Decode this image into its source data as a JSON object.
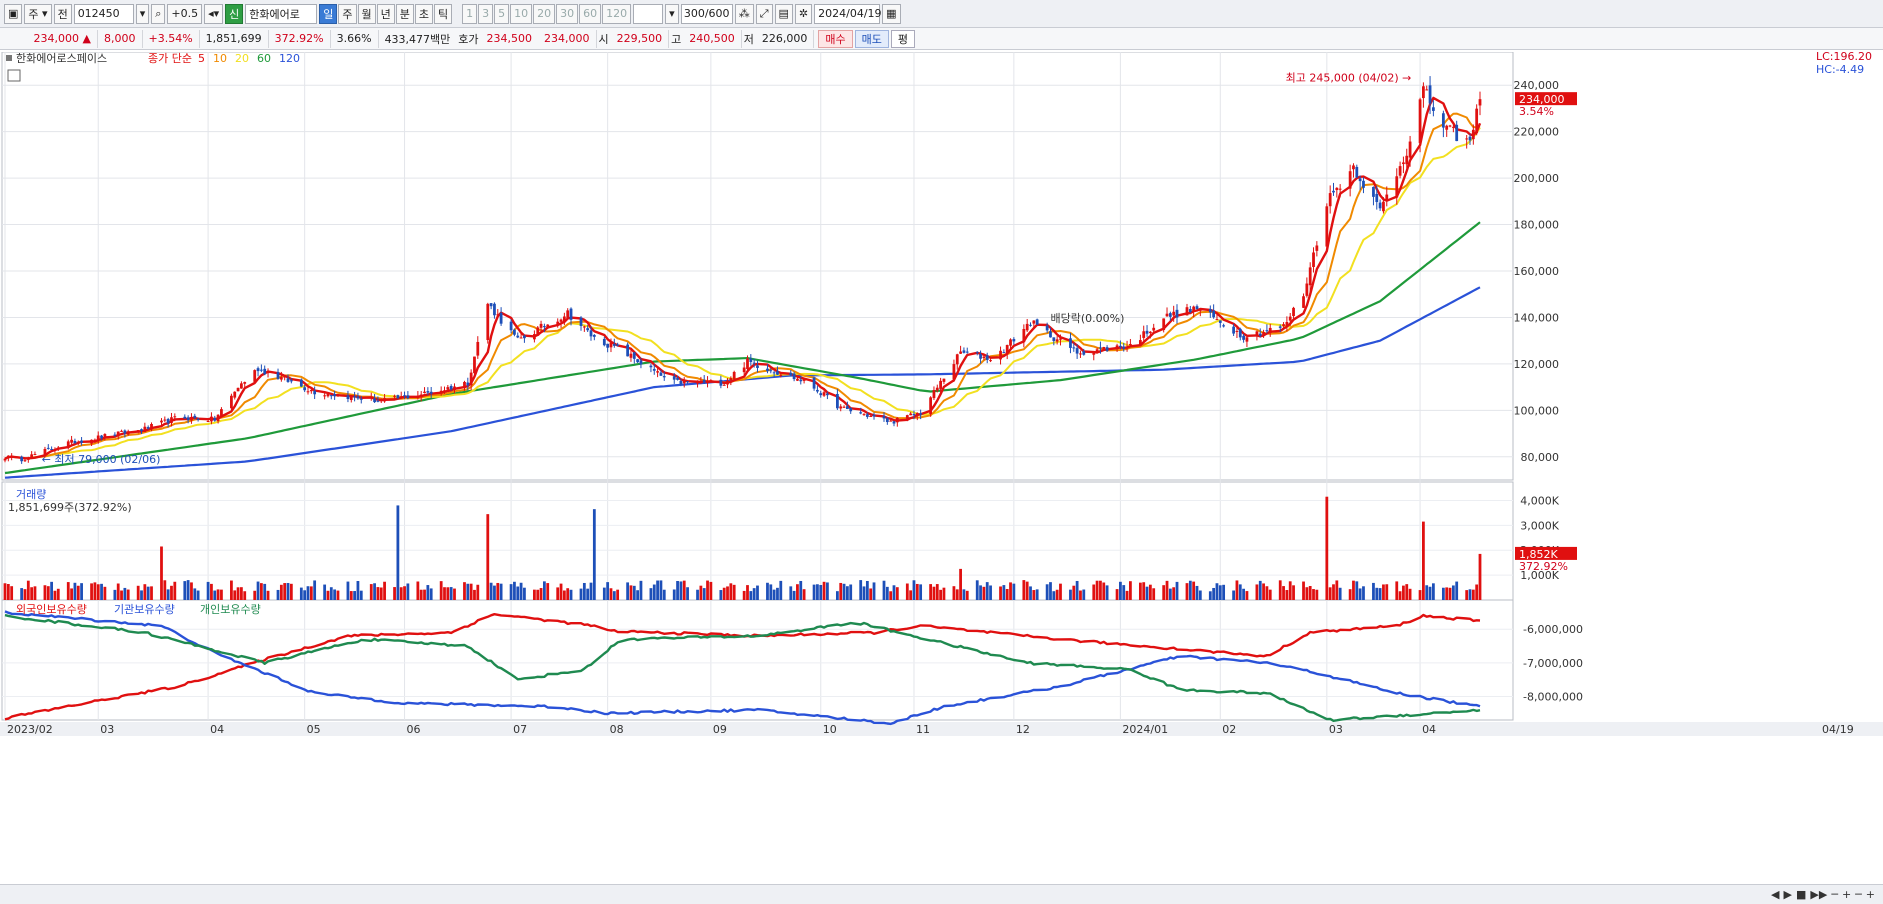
{
  "toolbar": {
    "period_select": "주",
    "code_label": "전",
    "stock_code": "012450",
    "adjust_label": "+0.5",
    "credit_badge": "신",
    "stock_name": "한화에어로",
    "periods": [
      "일",
      "주",
      "월",
      "년",
      "분",
      "초",
      "틱"
    ],
    "active_period": "일",
    "minute_options": [
      "1",
      "3",
      "5",
      "10",
      "20",
      "30",
      "60",
      "120"
    ],
    "count_value": "300/600",
    "date_value": "2024/04/19"
  },
  "quote": {
    "price": "234,000 ▲",
    "change": "8,000",
    "change_pct": "+3.54%",
    "volume": "1,851,699",
    "volume_ratio": "372.92%",
    "turnover": "3.66%",
    "amount": "433,477백만",
    "bid_label": "호가",
    "ask": "234,500",
    "bid": "234,000",
    "open_label": "시",
    "open": "229,500",
    "high_label": "고",
    "high": "240,500",
    "low_label": "저",
    "low": "226,000",
    "buy_button": "매수",
    "sell_button": "매도",
    "eval_button": "평"
  },
  "chart_data": {
    "type": "candlestick",
    "legend": {
      "stock_name": "한화에어로스페이스",
      "ma_title": "종가 단순",
      "ma_periods": [
        "5",
        "10",
        "20",
        "60",
        "120"
      ],
      "ma_colors": [
        "#e01010",
        "#f08a00",
        "#f2e020",
        "#1f9a3a",
        "#2a52d8"
      ]
    },
    "x_axis_labels": [
      "2023/02",
      "03",
      "04",
      "05",
      "06",
      "07",
      "08",
      "09",
      "10",
      "11",
      "12",
      "2024/01",
      "02",
      "03",
      "04",
      "04/19"
    ],
    "price_axis_ticks": [
      "240,000",
      "220,000",
      "200,000",
      "180,000",
      "160,000",
      "140,000",
      "120,000",
      "100,000",
      "80,000"
    ],
    "price_ylim": [
      70000,
      250000
    ],
    "lc_label": "LC:196.20",
    "hc_label": "HC:-4.49",
    "last_price_tag": "234,000",
    "last_pct_tag": "3.54%",
    "high_annotation": "최고 245,000 (04/02)",
    "low_annotation": "최저 79,000 (02/06)",
    "dividend_annotation": "배당락(0.00%)",
    "price_anchors": [
      [
        "2023-02-01",
        80000
      ],
      [
        "2023-02-06",
        79000
      ],
      [
        "2023-02-20",
        86000
      ],
      [
        "2023-03-15",
        92000
      ],
      [
        "2023-03-25",
        97000
      ],
      [
        "2023-04-05",
        96000
      ],
      [
        "2023-04-12",
        110000
      ],
      [
        "2023-04-18",
        118000
      ],
      [
        "2023-05-05",
        108000
      ],
      [
        "2023-05-25",
        104000
      ],
      [
        "2023-06-10",
        108000
      ],
      [
        "2023-06-20",
        112000
      ],
      [
        "2023-06-26",
        146000
      ],
      [
        "2023-07-05",
        130000
      ],
      [
        "2023-07-20",
        142000
      ],
      [
        "2023-07-28",
        131000
      ],
      [
        "2023-08-05",
        126000
      ],
      [
        "2023-08-20",
        112000
      ],
      [
        "2023-09-05",
        112000
      ],
      [
        "2023-09-12",
        121000
      ],
      [
        "2023-09-30",
        112000
      ],
      [
        "2023-10-10",
        101000
      ],
      [
        "2023-10-25",
        95000
      ],
      [
        "2023-11-03",
        99000
      ],
      [
        "2023-11-15",
        125000
      ],
      [
        "2023-11-25",
        122000
      ],
      [
        "2023-12-06",
        138000
      ],
      [
        "2023-12-20",
        125000
      ],
      [
        "2024-01-05",
        128000
      ],
      [
        "2024-01-15",
        140000
      ],
      [
        "2024-01-25",
        144000
      ],
      [
        "2024-02-08",
        132000
      ],
      [
        "2024-02-20",
        136000
      ],
      [
        "2024-02-26",
        150000
      ],
      [
        "2024-03-04",
        190000
      ],
      [
        "2024-03-12",
        205000
      ],
      [
        "2024-03-20",
        186000
      ],
      [
        "2024-03-28",
        212000
      ],
      [
        "2024-04-02",
        238000
      ],
      [
        "2024-04-08",
        222000
      ],
      [
        "2024-04-16",
        215000
      ],
      [
        "2024-04-19",
        234000
      ]
    ],
    "ma60_anchors": [
      [
        "2023-02-01",
        73000
      ],
      [
        "2023-04-15",
        88000
      ],
      [
        "2023-06-15",
        107000
      ],
      [
        "2023-08-15",
        121000
      ],
      [
        "2023-09-12",
        122500
      ],
      [
        "2023-10-15",
        114000
      ],
      [
        "2023-11-05",
        108000
      ],
      [
        "2023-12-15",
        113000
      ],
      [
        "2024-01-25",
        122000
      ],
      [
        "2024-02-25",
        131000
      ],
      [
        "2024-03-20",
        147000
      ],
      [
        "2024-04-19",
        181000
      ]
    ],
    "ma120_anchors": [
      [
        "2023-02-01",
        71000
      ],
      [
        "2023-04-15",
        78000
      ],
      [
        "2023-06-15",
        91000
      ],
      [
        "2023-08-15",
        110000
      ],
      [
        "2023-09-25",
        115000
      ],
      [
        "2023-11-05",
        115500
      ],
      [
        "2024-01-15",
        117500
      ],
      [
        "2024-02-25",
        121000
      ],
      [
        "2024-03-20",
        130000
      ],
      [
        "2024-04-19",
        153000
      ]
    ],
    "volume_panel": {
      "title": "거래량",
      "value_label": "1,851,699주(372.92%)",
      "ticks": [
        "4,000K",
        "3,000K",
        "2,000K",
        "1,000K"
      ],
      "ylim": [
        0,
        4500
      ],
      "last_tag": "1,852K",
      "last_pct": "372.92%",
      "spikes": [
        [
          "2023-03-20",
          2150
        ],
        [
          "2023-05-30",
          3800
        ],
        [
          "2023-06-26",
          3450
        ],
        [
          "2023-07-28",
          3650
        ],
        [
          "2023-11-15",
          1250
        ],
        [
          "2024-03-04",
          4150
        ],
        [
          "2024-04-02",
          3150
        ],
        [
          "2024-04-19",
          1852
        ]
      ]
    },
    "holdings_panel": {
      "series_names": [
        "외국인보유수량",
        "기관보유수량",
        "개인보유수량"
      ],
      "series_colors": [
        "#e01010",
        "#2a52d8",
        "#1f8a50"
      ],
      "ticks": [
        "-6,000,000",
        "-7,000,000",
        "-8,000,000"
      ],
      "ylim": [
        -8700000,
        -5250000
      ],
      "foreign_anchors": [
        [
          "2023-02-01",
          -8650000
        ],
        [
          "2023-02-25",
          -8200000
        ],
        [
          "2023-03-25",
          -7700000
        ],
        [
          "2023-04-20",
          -6900000
        ],
        [
          "2023-05-15",
          -6200000
        ],
        [
          "2023-06-15",
          -6100000
        ],
        [
          "2023-06-28",
          -5550000
        ],
        [
          "2023-07-28",
          -5900000
        ],
        [
          "2023-08-01",
          -6050000
        ],
        [
          "2023-09-15",
          -6200000
        ],
        [
          "2023-10-20",
          -6100000
        ],
        [
          "2023-11-03",
          -5900000
        ],
        [
          "2023-12-15",
          -6300000
        ],
        [
          "2024-02-15",
          -6800000
        ],
        [
          "2024-02-28",
          -6100000
        ],
        [
          "2024-03-25",
          -5900000
        ],
        [
          "2024-04-02",
          -5600000
        ],
        [
          "2024-04-19",
          -5750000
        ]
      ],
      "institution_anchors": [
        [
          "2023-02-01",
          -5500000
        ],
        [
          "2023-03-20",
          -5900000
        ],
        [
          "2023-04-05",
          -6700000
        ],
        [
          "2023-05-05",
          -7900000
        ],
        [
          "2023-06-01",
          -8200000
        ],
        [
          "2023-07-15",
          -8300000
        ],
        [
          "2023-08-01",
          -8500000
        ],
        [
          "2023-09-15",
          -8400000
        ],
        [
          "2023-10-25",
          -8800000
        ],
        [
          "2023-11-10",
          -8300000
        ],
        [
          "2023-12-15",
          -7700000
        ],
        [
          "2024-01-20",
          -6800000
        ],
        [
          "2024-02-15",
          -7000000
        ],
        [
          "2024-03-01",
          -7300000
        ],
        [
          "2024-03-25",
          -7900000
        ],
        [
          "2024-04-19",
          -8300000
        ]
      ],
      "individual_anchors": [
        [
          "2023-02-01",
          -5600000
        ],
        [
          "2023-03-15",
          -6100000
        ],
        [
          "2023-04-20",
          -7000000
        ],
        [
          "2023-05-20",
          -6300000
        ],
        [
          "2023-06-20",
          -6500000
        ],
        [
          "2023-07-05",
          -7500000
        ],
        [
          "2023-07-25",
          -7200000
        ],
        [
          "2023-08-05",
          -6300000
        ],
        [
          "2023-09-15",
          -6200000
        ],
        [
          "2023-10-15",
          -5800000
        ],
        [
          "2023-11-05",
          -6300000
        ],
        [
          "2023-12-05",
          -7000000
        ],
        [
          "2024-01-05",
          -7200000
        ],
        [
          "2024-01-20",
          -7800000
        ],
        [
          "2024-02-15",
          -7900000
        ],
        [
          "2024-03-05",
          -8700000
        ],
        [
          "2024-04-05",
          -8500000
        ],
        [
          "2024-04-19",
          -8400000
        ]
      ]
    }
  },
  "bottom": {
    "nav": [
      "◀",
      "▶",
      "■",
      "▶▶",
      "─",
      "+",
      "─",
      "+"
    ]
  }
}
